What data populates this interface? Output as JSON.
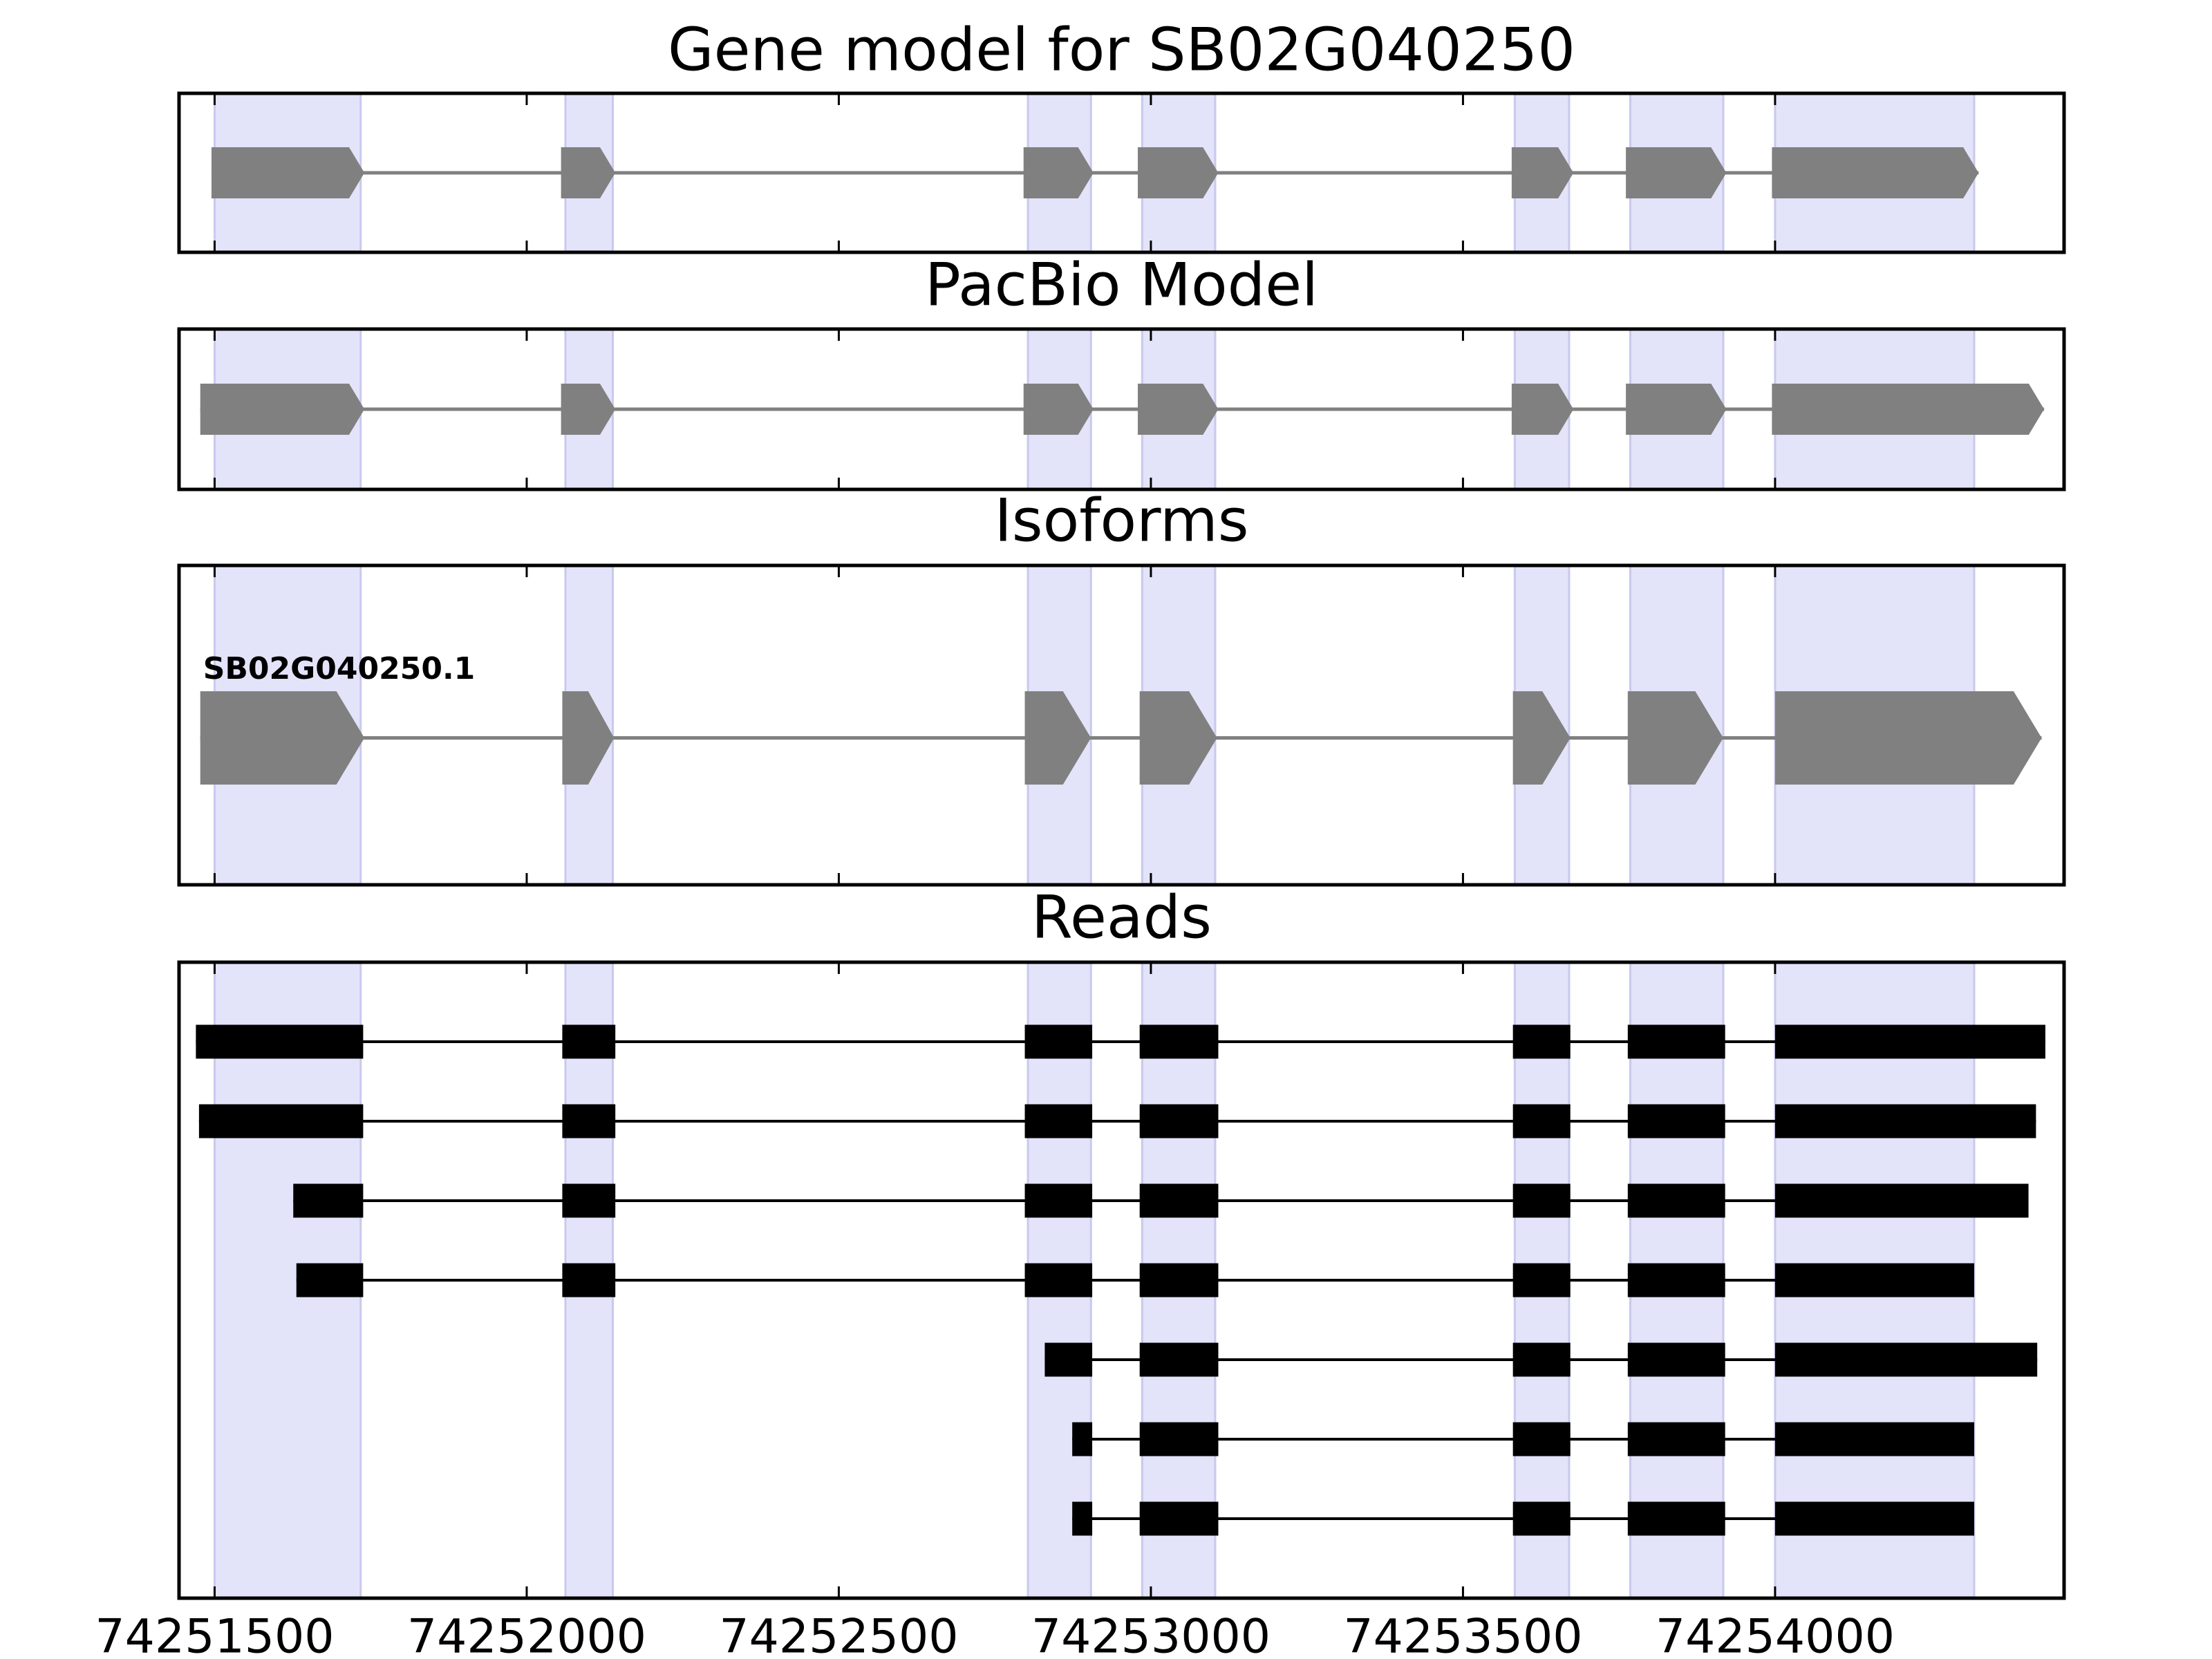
{
  "chart_data": {
    "type": "gene_tracks",
    "xlim": [
      74251443,
      74254463
    ],
    "xticks": [
      74251500,
      74252000,
      74252500,
      74253000,
      74253500,
      74254000
    ],
    "highlight_color": "#e3e3fa",
    "highlights": [
      [
        74251500,
        74251734
      ],
      [
        74252062,
        74252138
      ],
      [
        74252803,
        74252904
      ],
      [
        74252986,
        74253103
      ],
      [
        74253583,
        74253670
      ],
      [
        74253768,
        74253917
      ],
      [
        74254000,
        74254319
      ]
    ],
    "panels": [
      {
        "title": "Gene model for SB02G040250",
        "style": "arrow",
        "color": "#808080",
        "transcripts": [
          {
            "exons": [
              [
                74251495,
                74251740
              ],
              [
                74252055,
                74252142
              ],
              [
                74252796,
                74252908
              ],
              [
                74252979,
                74253108
              ],
              [
                74253578,
                74253677
              ],
              [
                74253761,
                74253922
              ],
              [
                74253995,
                74254326
              ]
            ]
          }
        ]
      },
      {
        "title": "PacBio Model",
        "style": "arrow",
        "color": "#808080",
        "transcripts": [
          {
            "exons": [
              [
                74251477,
                74251740
              ],
              [
                74252055,
                74252142
              ],
              [
                74252796,
                74252908
              ],
              [
                74252979,
                74253108
              ],
              [
                74253578,
                74253677
              ],
              [
                74253761,
                74253922
              ],
              [
                74253995,
                74254431
              ]
            ]
          }
        ]
      },
      {
        "title": "Isoforms",
        "style": "arrow",
        "color": "#808080",
        "transcripts": [
          {
            "name": "SB02G040250.1",
            "exons": [
              [
                74251477,
                74251740
              ],
              [
                74252057,
                74252140
              ],
              [
                74252798,
                74252904
              ],
              [
                74252982,
                74253106
              ],
              [
                74253580,
                74253672
              ],
              [
                74253764,
                74253917
              ],
              [
                74254000,
                74254427
              ]
            ]
          }
        ]
      },
      {
        "title": "Reads",
        "style": "block",
        "color": "#000000",
        "transcripts": [
          {
            "exons": [
              [
                74251470,
                74251738
              ],
              [
                74252057,
                74252142
              ],
              [
                74252798,
                74252906
              ],
              [
                74252982,
                74253108
              ],
              [
                74253580,
                74253672
              ],
              [
                74253764,
                74253920
              ],
              [
                74254000,
                74254433
              ]
            ]
          },
          {
            "exons": [
              [
                74251475,
                74251738
              ],
              [
                74252057,
                74252142
              ],
              [
                74252798,
                74252906
              ],
              [
                74252982,
                74253108
              ],
              [
                74253580,
                74253672
              ],
              [
                74253764,
                74253920
              ],
              [
                74254000,
                74254418
              ]
            ]
          },
          {
            "exons": [
              [
                74251626,
                74251738
              ],
              [
                74252057,
                74252142
              ],
              [
                74252798,
                74252906
              ],
              [
                74252982,
                74253108
              ],
              [
                74253580,
                74253672
              ],
              [
                74253764,
                74253920
              ],
              [
                74254000,
                74254406
              ]
            ]
          },
          {
            "exons": [
              [
                74251631,
                74251738
              ],
              [
                74252057,
                74252142
              ],
              [
                74252798,
                74252906
              ],
              [
                74252982,
                74253108
              ],
              [
                74253580,
                74253672
              ],
              [
                74253764,
                74253920
              ],
              [
                74254000,
                74254319
              ]
            ]
          },
          {
            "exons": [
              [
                74252830,
                74252906
              ],
              [
                74252982,
                74253108
              ],
              [
                74253580,
                74253672
              ],
              [
                74253764,
                74253920
              ],
              [
                74254000,
                74254420
              ]
            ]
          },
          {
            "exons": [
              [
                74252874,
                74252906
              ],
              [
                74252982,
                74253108
              ],
              [
                74253580,
                74253672
              ],
              [
                74253764,
                74253920
              ],
              [
                74254000,
                74254319
              ]
            ]
          },
          {
            "exons": [
              [
                74252874,
                74252906
              ],
              [
                74252982,
                74253108
              ],
              [
                74253580,
                74253672
              ],
              [
                74253764,
                74253920
              ],
              [
                74254000,
                74254319
              ]
            ]
          }
        ]
      }
    ]
  }
}
